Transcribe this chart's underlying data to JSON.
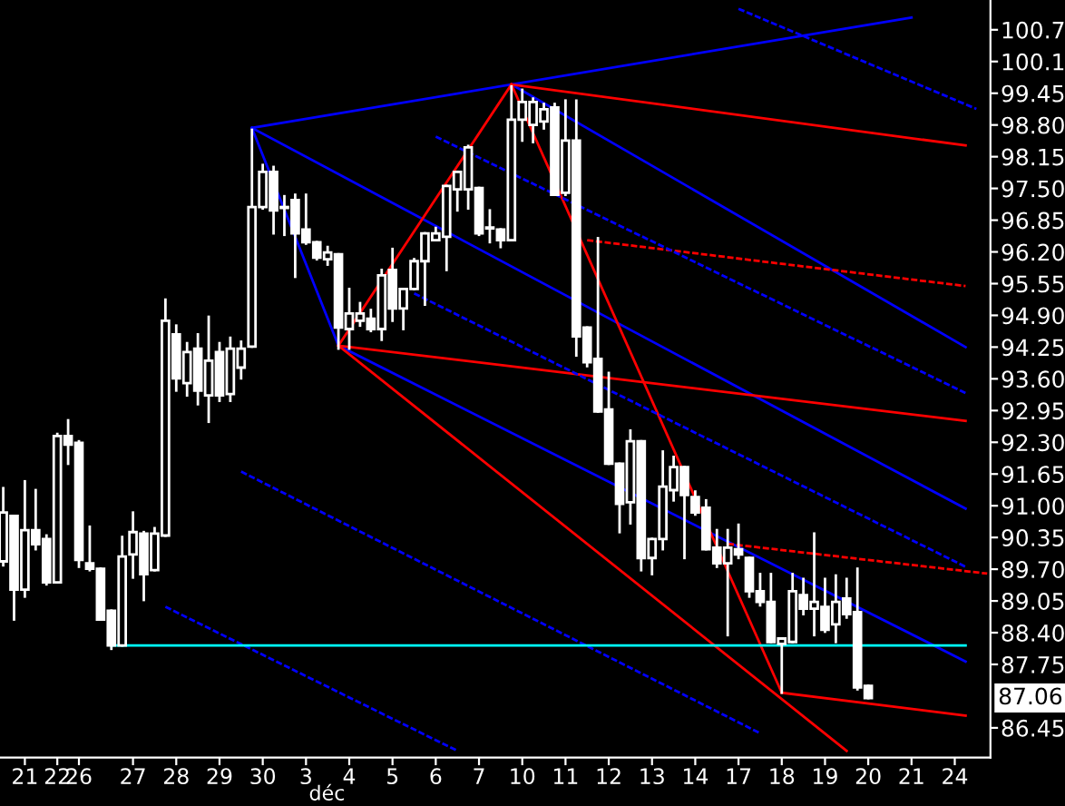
{
  "chart_data": {
    "type": "candlestick",
    "categories": [
      null,
      null,
      "21",
      null,
      null,
      "22",
      null,
      "26",
      null,
      null,
      null,
      null,
      "27",
      null,
      null,
      null,
      "28",
      null,
      null,
      null,
      "29",
      null,
      null,
      null,
      "30",
      null,
      null,
      null,
      "3",
      null,
      null,
      null,
      "4",
      null,
      null,
      null,
      "5",
      null,
      null,
      null,
      "6",
      null,
      null,
      null,
      "7",
      null,
      null,
      null,
      "10",
      null,
      null,
      null,
      "11",
      null,
      null,
      null,
      "12",
      null,
      null,
      null,
      "13",
      null,
      null,
      null,
      "14",
      null,
      null,
      null,
      "17",
      null,
      null,
      null,
      "18",
      null,
      null,
      null,
      "19",
      null,
      null,
      null,
      "20",
      null,
      null,
      null,
      "21",
      null,
      null,
      null,
      "24",
      null,
      null,
      null
    ],
    "ohlc": [
      [
        89.86,
        91.36,
        89.78,
        90.86
      ],
      [
        90.79,
        90.79,
        88.67,
        89.28
      ],
      [
        89.28,
        91.5,
        89.14,
        90.5
      ],
      [
        90.5,
        91.32,
        90.11,
        90.21
      ],
      [
        90.32,
        90.39,
        89.39,
        89.43
      ],
      [
        89.43,
        92.47,
        89.43,
        92.43
      ],
      [
        92.43,
        92.75,
        91.86,
        92.25
      ],
      [
        92.29,
        92.32,
        89.75,
        89.89
      ],
      [
        89.82,
        90.57,
        89.68,
        89.71
      ],
      [
        89.71,
        89.71,
        88.67,
        88.67
      ],
      [
        88.85,
        88.85,
        88.07,
        88.14
      ],
      [
        88.14,
        90.36,
        88.14,
        89.96
      ],
      [
        90.0,
        90.86,
        89.53,
        90.46
      ],
      [
        90.43,
        90.46,
        89.07,
        89.6
      ],
      [
        89.68,
        90.54,
        89.68,
        90.43
      ],
      [
        90.39,
        95.22,
        90.39,
        94.79
      ],
      [
        94.51,
        94.69,
        93.36,
        93.61
      ],
      [
        93.51,
        94.33,
        93.26,
        94.15
      ],
      [
        94.22,
        94.51,
        93.08,
        93.36
      ],
      [
        93.26,
        94.87,
        92.72,
        93.97
      ],
      [
        94.15,
        94.33,
        93.15,
        93.26
      ],
      [
        93.29,
        94.44,
        93.15,
        94.22
      ],
      [
        93.83,
        94.36,
        93.61,
        94.22
      ],
      [
        94.26,
        98.7,
        94.26,
        97.12
      ],
      [
        97.12,
        97.98,
        97.09,
        97.84
      ],
      [
        97.84,
        97.94,
        96.58,
        97.05
      ],
      [
        97.12,
        97.34,
        96.55,
        97.1
      ],
      [
        97.26,
        97.37,
        95.69,
        96.58
      ],
      [
        96.66,
        97.37,
        96.37,
        96.4
      ],
      [
        96.4,
        96.4,
        96.05,
        96.08
      ],
      [
        96.05,
        96.3,
        95.94,
        96.19
      ],
      [
        96.15,
        96.15,
        94.22,
        94.65
      ],
      [
        94.62,
        95.44,
        94.22,
        94.94
      ],
      [
        94.79,
        95.15,
        94.69,
        94.94
      ],
      [
        94.83,
        95.01,
        94.58,
        94.62
      ],
      [
        94.62,
        95.83,
        94.4,
        95.72
      ],
      [
        95.83,
        96.26,
        94.79,
        95.04
      ],
      [
        95.04,
        95.44,
        94.62,
        95.44
      ],
      [
        95.44,
        96.05,
        95.44,
        96.01
      ],
      [
        96.01,
        96.58,
        95.12,
        96.58
      ],
      [
        96.44,
        96.69,
        96.44,
        96.58
      ],
      [
        96.51,
        97.55,
        95.83,
        97.55
      ],
      [
        97.48,
        97.84,
        97.05,
        97.84
      ],
      [
        97.48,
        98.37,
        97.09,
        98.34
      ],
      [
        97.51,
        97.51,
        96.55,
        96.58
      ],
      [
        96.69,
        97.05,
        96.4,
        96.68
      ],
      [
        96.66,
        96.66,
        96.3,
        96.44
      ],
      [
        96.44,
        99.59,
        96.44,
        98.91
      ],
      [
        98.91,
        99.52,
        98.48,
        99.27
      ],
      [
        98.8,
        99.34,
        98.45,
        99.27
      ],
      [
        98.87,
        99.23,
        98.73,
        99.12
      ],
      [
        99.16,
        99.23,
        97.37,
        97.37
      ],
      [
        97.41,
        99.3,
        97.37,
        98.48
      ],
      [
        98.48,
        99.3,
        94.08,
        94.47
      ],
      [
        94.65,
        94.65,
        93.86,
        93.94
      ],
      [
        94.01,
        96.48,
        92.93,
        92.93
      ],
      [
        92.97,
        93.72,
        91.86,
        91.86
      ],
      [
        91.86,
        91.86,
        90.46,
        91.04
      ],
      [
        91.07,
        92.54,
        90.64,
        92.32
      ],
      [
        92.32,
        92.32,
        89.68,
        89.93
      ],
      [
        89.93,
        90.32,
        89.6,
        90.32
      ],
      [
        90.32,
        92.11,
        90.11,
        91.39
      ],
      [
        91.32,
        92.0,
        91.11,
        91.79
      ],
      [
        91.79,
        91.79,
        89.93,
        91.22
      ],
      [
        91.18,
        91.29,
        90.82,
        90.86
      ],
      [
        90.96,
        91.11,
        90.11,
        90.11
      ],
      [
        90.14,
        90.5,
        89.75,
        89.82
      ],
      [
        89.82,
        90.5,
        88.35,
        90.14
      ],
      [
        90.11,
        90.61,
        89.93,
        90.0
      ],
      [
        89.93,
        89.93,
        89.14,
        89.25
      ],
      [
        89.25,
        89.6,
        88.96,
        89.03
      ],
      [
        89.03,
        89.6,
        88.21,
        88.21
      ],
      [
        88.17,
        88.28,
        87.17,
        88.28
      ],
      [
        88.21,
        89.6,
        88.21,
        89.25
      ],
      [
        89.17,
        89.5,
        88.78,
        88.89
      ],
      [
        88.89,
        90.43,
        88.35,
        89.03
      ],
      [
        88.93,
        89.5,
        88.42,
        88.46
      ],
      [
        88.57,
        89.57,
        88.21,
        89.03
      ],
      [
        89.1,
        89.5,
        88.71,
        88.78
      ],
      [
        88.82,
        89.71,
        87.24,
        87.28
      ],
      [
        87.31,
        87.31,
        87.06,
        87.06
      ],
      null,
      null,
      null,
      null,
      null,
      null,
      null,
      null,
      null,
      null,
      null
    ],
    "color": "#ffffff",
    "series": [
      {
        "type": "line",
        "color": "#0000ff",
        "values": [
          null,
          null,
          null,
          null,
          null,
          null,
          null,
          null,
          null,
          null,
          null,
          null,
          null,
          null,
          null,
          null,
          null,
          null,
          null,
          null,
          null,
          null,
          null,
          98.74,
          null,
          null,
          null,
          null,
          null,
          null,
          null,
          null,
          null,
          null,
          null,
          null,
          null,
          null,
          null,
          null,
          null,
          null,
          null,
          null,
          null,
          null,
          null,
          null,
          null,
          null,
          null,
          null,
          null,
          null,
          null,
          null,
          null,
          null,
          null,
          null,
          null,
          null,
          null,
          null,
          null,
          null,
          null,
          null,
          null,
          null,
          null,
          null,
          null,
          null,
          null,
          null,
          null,
          null,
          null,
          null,
          null,
          null,
          null,
          null,
          101.0,
          null,
          null,
          null,
          null,
          null,
          null,
          null
        ]
      },
      {
        "type": "line",
        "color": "#0000ff",
        "values": [
          null,
          null,
          null,
          null,
          null,
          null,
          null,
          null,
          null,
          null,
          null,
          null,
          null,
          null,
          null,
          null,
          null,
          null,
          null,
          null,
          null,
          null,
          null,
          98.74,
          null,
          null,
          null,
          null,
          null,
          null,
          null,
          94.28,
          null,
          null,
          null,
          null,
          null,
          null,
          null,
          null,
          null,
          null,
          null,
          null,
          null,
          null,
          null,
          null,
          null,
          null,
          null,
          null,
          null,
          null,
          null,
          null,
          null,
          null,
          null,
          null,
          null,
          null,
          null,
          null,
          null,
          null,
          null,
          null,
          null,
          null,
          null,
          null,
          null,
          null,
          null,
          null,
          null,
          null,
          null,
          null,
          null,
          null,
          null,
          null,
          null,
          null,
          null,
          null,
          null,
          null,
          null,
          null
        ]
      },
      {
        "type": "line",
        "color": "#0000ff",
        "values": [
          null,
          null,
          null,
          null,
          null,
          null,
          null,
          null,
          null,
          null,
          null,
          null,
          null,
          null,
          null,
          null,
          null,
          null,
          null,
          null,
          null,
          null,
          null,
          null,
          null,
          null,
          null,
          null,
          null,
          null,
          null,
          null,
          null,
          null,
          null,
          null,
          null,
          null,
          null,
          null,
          null,
          null,
          null,
          null,
          null,
          null,
          null,
          99.63,
          null,
          null,
          null,
          null,
          null,
          null,
          null,
          null,
          null,
          null,
          null,
          null,
          null,
          null,
          null,
          null,
          null,
          null,
          null,
          null,
          null,
          null,
          null,
          null,
          null,
          null,
          null,
          null,
          null,
          null,
          null,
          null,
          null,
          null,
          null,
          null,
          null,
          null,
          null,
          null,
          null,
          94.25,
          null,
          null
        ]
      },
      {
        "type": "line",
        "color": "#0000ff",
        "values": [
          null,
          null,
          null,
          null,
          null,
          null,
          null,
          null,
          null,
          null,
          null,
          null,
          null,
          null,
          null,
          null,
          null,
          null,
          null,
          null,
          null,
          null,
          null,
          98.74,
          null,
          null,
          null,
          null,
          null,
          null,
          null,
          null,
          null,
          null,
          null,
          null,
          null,
          null,
          null,
          null,
          null,
          null,
          null,
          null,
          null,
          null,
          null,
          null,
          null,
          null,
          null,
          null,
          null,
          null,
          null,
          null,
          null,
          null,
          null,
          null,
          null,
          null,
          null,
          null,
          null,
          null,
          null,
          null,
          null,
          null,
          null,
          null,
          null,
          null,
          null,
          null,
          null,
          null,
          null,
          null,
          null,
          null,
          null,
          null,
          null,
          null,
          null,
          null,
          null,
          90.94,
          null,
          null
        ]
      },
      {
        "type": "line",
        "color": "#0000ff",
        "values": [
          null,
          null,
          null,
          null,
          null,
          null,
          null,
          null,
          null,
          null,
          null,
          null,
          null,
          null,
          null,
          null,
          null,
          null,
          null,
          null,
          null,
          null,
          null,
          null,
          null,
          null,
          null,
          null,
          null,
          null,
          null,
          94.28,
          null,
          null,
          null,
          null,
          null,
          null,
          null,
          null,
          null,
          null,
          null,
          null,
          null,
          null,
          null,
          null,
          null,
          null,
          null,
          null,
          null,
          null,
          null,
          null,
          null,
          null,
          null,
          null,
          null,
          null,
          null,
          null,
          null,
          null,
          null,
          null,
          null,
          null,
          null,
          null,
          null,
          null,
          null,
          null,
          null,
          null,
          null,
          null,
          null,
          null,
          null,
          null,
          null,
          null,
          null,
          null,
          null,
          87.81,
          null,
          null
        ]
      },
      {
        "type": "line",
        "color": "#ff0000",
        "values": [
          null,
          null,
          null,
          null,
          null,
          null,
          null,
          null,
          null,
          null,
          null,
          null,
          null,
          null,
          null,
          null,
          null,
          null,
          null,
          null,
          null,
          null,
          null,
          null,
          null,
          null,
          null,
          null,
          null,
          null,
          null,
          null,
          null,
          null,
          null,
          null,
          null,
          null,
          null,
          null,
          null,
          null,
          null,
          null,
          null,
          null,
          null,
          99.63,
          null,
          null,
          null,
          null,
          null,
          null,
          null,
          null,
          null,
          null,
          null,
          null,
          null,
          null,
          null,
          null,
          null,
          null,
          null,
          null,
          null,
          null,
          null,
          null,
          null,
          null,
          null,
          null,
          null,
          null,
          null,
          null,
          null,
          null,
          null,
          null,
          null,
          null,
          null,
          null,
          null,
          98.38,
          null,
          null
        ]
      },
      {
        "type": "line",
        "color": "#ff0000",
        "values": [
          null,
          null,
          null,
          null,
          null,
          null,
          null,
          null,
          null,
          null,
          null,
          null,
          null,
          null,
          null,
          null,
          null,
          null,
          null,
          null,
          null,
          null,
          null,
          null,
          null,
          null,
          null,
          null,
          null,
          null,
          null,
          94.28,
          null,
          null,
          null,
          null,
          null,
          null,
          null,
          null,
          null,
          null,
          null,
          null,
          null,
          null,
          null,
          null,
          null,
          null,
          null,
          null,
          null,
          null,
          null,
          null,
          null,
          null,
          null,
          null,
          null,
          null,
          null,
          null,
          null,
          null,
          null,
          null,
          null,
          null,
          null,
          null,
          null,
          null,
          null,
          null,
          null,
          null,
          null,
          null,
          null,
          null,
          null,
          null,
          null,
          null,
          null,
          null,
          null,
          92.74,
          null,
          null
        ]
      },
      {
        "type": "line",
        "color": "#ff0000",
        "values": [
          null,
          null,
          null,
          null,
          null,
          null,
          null,
          null,
          null,
          null,
          null,
          null,
          null,
          null,
          null,
          null,
          null,
          null,
          null,
          null,
          null,
          null,
          null,
          null,
          null,
          null,
          null,
          null,
          null,
          null,
          null,
          null,
          null,
          null,
          null,
          null,
          null,
          null,
          null,
          null,
          null,
          null,
          null,
          null,
          null,
          null,
          null,
          null,
          null,
          null,
          null,
          null,
          null,
          null,
          null,
          null,
          null,
          null,
          null,
          null,
          null,
          null,
          null,
          null,
          null,
          null,
          null,
          null,
          null,
          null,
          null,
          null,
          87.17,
          null,
          null,
          null,
          null,
          null,
          null,
          null,
          null,
          null,
          null,
          null,
          null,
          null,
          null,
          null,
          null,
          86.7,
          null,
          null
        ]
      },
      {
        "type": "line",
        "color": "#ff0000",
        "values": [
          null,
          null,
          null,
          null,
          null,
          null,
          null,
          null,
          null,
          null,
          null,
          null,
          null,
          null,
          null,
          null,
          null,
          null,
          null,
          null,
          null,
          null,
          null,
          null,
          null,
          null,
          null,
          null,
          null,
          null,
          null,
          94.28,
          null,
          null,
          null,
          null,
          null,
          null,
          null,
          null,
          null,
          null,
          null,
          null,
          null,
          null,
          null,
          99.63,
          null,
          null,
          null,
          null,
          null,
          null,
          null,
          null,
          null,
          null,
          null,
          null,
          null,
          null,
          null,
          null,
          null,
          null,
          null,
          null,
          null,
          null,
          null,
          null,
          null,
          null,
          null,
          null,
          null,
          null,
          null,
          null,
          null,
          null,
          null,
          null,
          null,
          null,
          null,
          null,
          null,
          null,
          null,
          null
        ]
      },
      {
        "type": "line",
        "color": "#ff0000",
        "values": [
          null,
          null,
          null,
          null,
          null,
          null,
          null,
          null,
          null,
          null,
          null,
          null,
          null,
          null,
          null,
          null,
          null,
          null,
          null,
          null,
          null,
          null,
          null,
          null,
          null,
          null,
          null,
          null,
          null,
          null,
          null,
          null,
          null,
          null,
          null,
          null,
          null,
          null,
          null,
          null,
          null,
          null,
          null,
          null,
          null,
          null,
          null,
          99.63,
          null,
          null,
          null,
          null,
          null,
          null,
          null,
          null,
          null,
          null,
          null,
          null,
          null,
          null,
          null,
          null,
          null,
          null,
          null,
          null,
          null,
          null,
          null,
          null,
          87.17,
          null,
          null,
          null,
          null,
          null,
          null,
          null,
          null,
          null,
          null,
          null,
          null,
          null,
          null,
          null,
          null,
          null,
          null,
          null
        ]
      },
      {
        "type": "line",
        "color": "#ff0000",
        "values": [
          null,
          null,
          null,
          null,
          null,
          null,
          null,
          null,
          null,
          null,
          null,
          null,
          null,
          null,
          null,
          null,
          null,
          null,
          null,
          null,
          null,
          null,
          null,
          null,
          null,
          null,
          null,
          null,
          null,
          null,
          null,
          94.28,
          null,
          null,
          null,
          null,
          null,
          null,
          null,
          null,
          null,
          null,
          null,
          null,
          null,
          null,
          null,
          null,
          null,
          null,
          null,
          null,
          null,
          null,
          null,
          null,
          null,
          null,
          null,
          null,
          null,
          null,
          null,
          null,
          null,
          null,
          null,
          null,
          null,
          null,
          null,
          null,
          null,
          null,
          null,
          null,
          null,
          null,
          85.98,
          null,
          null,
          null,
          null,
          null,
          null,
          null,
          null,
          null,
          null,
          null,
          null,
          null
        ]
      },
      {
        "type": "line",
        "color": "#ff0000",
        "line_style": "dashed",
        "values": [
          null,
          null,
          null,
          null,
          null,
          null,
          null,
          null,
          null,
          null,
          null,
          null,
          null,
          null,
          null,
          null,
          null,
          null,
          null,
          null,
          null,
          null,
          null,
          null,
          null,
          null,
          null,
          null,
          null,
          null,
          null,
          null,
          null,
          null,
          null,
          null,
          null,
          null,
          null,
          null,
          null,
          null,
          null,
          null,
          null,
          null,
          null,
          null,
          null,
          null,
          null,
          null,
          null,
          null,
          96.44,
          null,
          null,
          null,
          null,
          null,
          null,
          null,
          null,
          null,
          null,
          null,
          null,
          null,
          null,
          null,
          null,
          null,
          null,
          null,
          null,
          null,
          null,
          null,
          null,
          null,
          null,
          null,
          null,
          null,
          null,
          null,
          null,
          null,
          null,
          95.5,
          null,
          null
        ]
      },
      {
        "type": "line",
        "color": "#ff0000",
        "line_style": "dashed",
        "values": [
          null,
          null,
          null,
          null,
          null,
          null,
          null,
          null,
          null,
          null,
          null,
          null,
          null,
          null,
          null,
          null,
          null,
          null,
          null,
          null,
          null,
          null,
          null,
          null,
          null,
          null,
          null,
          null,
          null,
          null,
          null,
          null,
          null,
          null,
          null,
          null,
          null,
          null,
          null,
          null,
          null,
          null,
          null,
          null,
          null,
          null,
          null,
          null,
          null,
          null,
          null,
          null,
          null,
          null,
          null,
          null,
          null,
          null,
          null,
          null,
          null,
          null,
          null,
          null,
          null,
          null,
          null,
          90.22,
          null,
          null,
          null,
          null,
          null,
          null,
          null,
          null,
          null,
          null,
          null,
          null,
          null,
          null,
          null,
          null,
          null,
          null,
          null,
          null,
          null,
          null,
          null,
          89.61
        ]
      },
      {
        "type": "line",
        "color": "#0000ff",
        "line_style": "dashed",
        "values": [
          null,
          null,
          null,
          null,
          null,
          null,
          null,
          null,
          null,
          null,
          null,
          null,
          null,
          null,
          null,
          null,
          null,
          null,
          null,
          null,
          null,
          null,
          null,
          null,
          null,
          null,
          null,
          null,
          null,
          null,
          null,
          null,
          null,
          null,
          null,
          null,
          null,
          null,
          null,
          null,
          null,
          null,
          null,
          null,
          null,
          null,
          null,
          null,
          null,
          null,
          null,
          null,
          null,
          null,
          null,
          null,
          null,
          null,
          null,
          null,
          null,
          null,
          null,
          null,
          null,
          null,
          null,
          null,
          101.18,
          null,
          null,
          null,
          null,
          null,
          null,
          null,
          null,
          null,
          null,
          null,
          null,
          null,
          null,
          null,
          null,
          null,
          null,
          null,
          null,
          null,
          99.13,
          null
        ]
      },
      {
        "type": "line",
        "color": "#0000ff",
        "line_style": "dashed",
        "values": [
          null,
          null,
          null,
          null,
          null,
          null,
          null,
          null,
          null,
          null,
          null,
          null,
          null,
          null,
          null,
          null,
          null,
          null,
          null,
          null,
          null,
          null,
          null,
          null,
          null,
          null,
          null,
          null,
          null,
          null,
          null,
          null,
          null,
          null,
          null,
          null,
          null,
          null,
          null,
          null,
          98.56,
          null,
          null,
          null,
          null,
          null,
          null,
          null,
          null,
          null,
          null,
          null,
          null,
          null,
          null,
          null,
          null,
          null,
          null,
          null,
          null,
          null,
          null,
          null,
          null,
          null,
          null,
          null,
          null,
          null,
          null,
          null,
          null,
          null,
          null,
          null,
          null,
          null,
          null,
          null,
          null,
          null,
          null,
          null,
          null,
          null,
          null,
          null,
          null,
          93.31,
          null,
          null
        ]
      },
      {
        "type": "line",
        "color": "#0000ff",
        "line_style": "dashed",
        "values": [
          null,
          null,
          null,
          null,
          null,
          null,
          null,
          null,
          null,
          null,
          null,
          null,
          null,
          null,
          null,
          null,
          null,
          null,
          null,
          null,
          null,
          null,
          null,
          null,
          null,
          null,
          null,
          null,
          null,
          null,
          null,
          null,
          null,
          null,
          null,
          null,
          null,
          null,
          95.35,
          null,
          null,
          null,
          null,
          null,
          null,
          null,
          null,
          null,
          null,
          null,
          null,
          null,
          null,
          null,
          null,
          null,
          null,
          null,
          null,
          null,
          null,
          null,
          null,
          null,
          null,
          null,
          null,
          null,
          null,
          null,
          null,
          null,
          null,
          null,
          null,
          null,
          null,
          null,
          null,
          null,
          null,
          null,
          null,
          null,
          null,
          null,
          null,
          null,
          null,
          89.75,
          null,
          null
        ]
      },
      {
        "type": "line",
        "color": "#0000ff",
        "line_style": "dashed",
        "values": [
          null,
          null,
          null,
          null,
          null,
          null,
          null,
          null,
          null,
          null,
          null,
          null,
          null,
          null,
          null,
          null,
          null,
          null,
          null,
          null,
          null,
          null,
          91.7,
          null,
          null,
          null,
          null,
          null,
          null,
          null,
          null,
          null,
          null,
          null,
          null,
          null,
          null,
          null,
          null,
          null,
          null,
          null,
          null,
          null,
          null,
          null,
          null,
          null,
          null,
          null,
          null,
          null,
          null,
          null,
          null,
          null,
          null,
          null,
          null,
          null,
          null,
          null,
          null,
          null,
          null,
          null,
          null,
          null,
          null,
          null,
          86.34,
          null,
          null,
          null,
          null,
          null,
          null,
          null,
          null,
          null,
          null,
          null,
          null,
          null,
          null,
          null,
          null,
          null,
          null,
          null,
          null,
          null
        ]
      },
      {
        "type": "line",
        "color": "#0000ff",
        "line_style": "dashed",
        "values": [
          null,
          null,
          null,
          null,
          null,
          null,
          null,
          null,
          null,
          null,
          null,
          null,
          null,
          null,
          null,
          88.93,
          null,
          null,
          null,
          null,
          null,
          null,
          null,
          null,
          null,
          null,
          null,
          null,
          null,
          null,
          null,
          null,
          null,
          null,
          null,
          null,
          null,
          null,
          null,
          null,
          null,
          null,
          85.98,
          null,
          null,
          null,
          null,
          null,
          null,
          null,
          null,
          null,
          null,
          null,
          null,
          null,
          null,
          null,
          null,
          null,
          null,
          null,
          null,
          null,
          null,
          null,
          null,
          null,
          null,
          null,
          null,
          null,
          null,
          null,
          null,
          null,
          null,
          null,
          null,
          null,
          null,
          null,
          null,
          null,
          null,
          null,
          null,
          null,
          null,
          null,
          null,
          null
        ]
      },
      {
        "type": "line",
        "color": "#00ffff",
        "values": [
          null,
          null,
          null,
          null,
          null,
          null,
          null,
          null,
          null,
          null,
          88.14,
          null,
          null,
          null,
          null,
          null,
          null,
          null,
          null,
          null,
          null,
          null,
          null,
          null,
          null,
          null,
          null,
          null,
          null,
          null,
          null,
          null,
          null,
          null,
          null,
          null,
          null,
          null,
          null,
          null,
          null,
          null,
          null,
          null,
          null,
          null,
          null,
          null,
          null,
          null,
          null,
          null,
          null,
          null,
          null,
          null,
          null,
          null,
          null,
          null,
          null,
          null,
          null,
          null,
          null,
          null,
          null,
          null,
          null,
          null,
          null,
          null,
          null,
          null,
          null,
          null,
          null,
          null,
          null,
          null,
          null,
          null,
          null,
          null,
          null,
          null,
          null,
          null,
          null,
          88.14,
          null,
          null
        ]
      }
    ],
    "ylim": [
      85.84,
      101.36
    ],
    "yticks": [
      {
        "value": 100.75,
        "label": "100.7"
      },
      100.1,
      99.45,
      {
        "value": 98.8,
        "label": "98.80"
      },
      98.15,
      {
        "value": 97.5,
        "label": "97.50"
      },
      96.85,
      {
        "value": 96.2,
        "label": "96.20"
      },
      95.55,
      {
        "value": 94.9,
        "label": "94.90"
      },
      94.25,
      {
        "value": 93.6,
        "label": "93.60"
      },
      92.95,
      {
        "value": 92.3,
        "label": "92.30"
      },
      91.65,
      {
        "value": 91.0,
        "label": "91.00"
      },
      90.35,
      {
        "value": 89.7,
        "label": "89.70"
      },
      89.05,
      {
        "value": 88.4,
        "label": "88.40"
      },
      87.75,
      86.45
    ],
    "annotations": [
      "déc",
      {
        "text": "87.06",
        "y": 87.06
      }
    ],
    "grid": false,
    "legend": false
  }
}
